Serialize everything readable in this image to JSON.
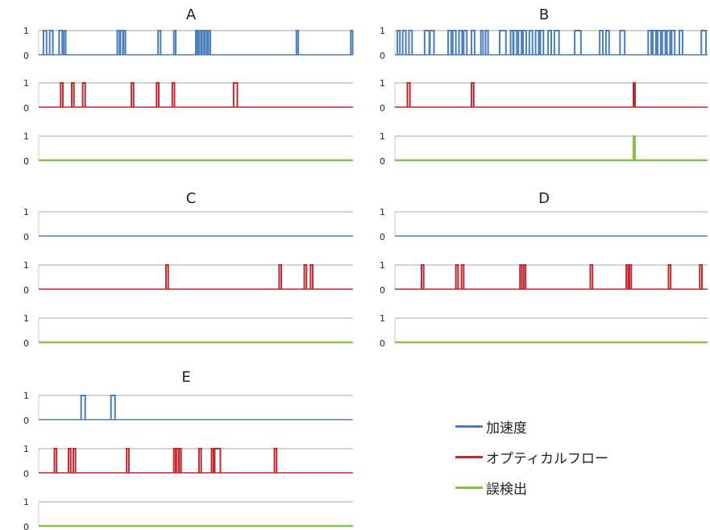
{
  "legend": {
    "accel": {
      "label": "加速度",
      "color": "#4a7ebb"
    },
    "optflow": {
      "label": "オプティカルフロー",
      "color": "#c0282d"
    },
    "false_detect": {
      "label": "誤検出",
      "color": "#86c24a"
    }
  },
  "chart_data": [
    {
      "type": "line",
      "title": "A",
      "x_domain": [
        0,
        100
      ],
      "y_ticks": [
        "1",
        "0"
      ],
      "ylim": [
        0,
        1
      ],
      "series": [
        {
          "name": "加速度",
          "key": "accel",
          "pulses": [
            [
              1.5,
              2.5
            ],
            [
              3.5,
              4.5
            ],
            [
              6.5,
              7.5
            ],
            [
              8.0,
              8.6
            ],
            [
              25.0,
              25.7
            ],
            [
              26.0,
              26.8
            ],
            [
              27.0,
              27.6
            ],
            [
              38.0,
              38.8
            ],
            [
              43.0,
              43.6
            ],
            [
              50.0,
              50.5
            ],
            [
              51.0,
              51.6
            ],
            [
              52.0,
              52.6
            ],
            [
              53.0,
              53.6
            ],
            [
              54.0,
              54.6
            ],
            [
              82.0,
              82.6
            ],
            [
              99.3,
              99.9
            ]
          ]
        },
        {
          "name": "オプティカルフロー",
          "key": "optflow",
          "pulses": [
            [
              7.0,
              7.7
            ],
            [
              10.5,
              11.2
            ],
            [
              14.0,
              14.8
            ],
            [
              29.5,
              30.2
            ],
            [
              37.5,
              38.2
            ],
            [
              42.5,
              43.2
            ],
            [
              62.0,
              63.2
            ]
          ]
        },
        {
          "name": "誤検出",
          "key": "false_detect",
          "pulses": []
        }
      ]
    },
    {
      "type": "line",
      "title": "B",
      "x_domain": [
        0,
        100
      ],
      "y_ticks": [
        "1",
        "0"
      ],
      "ylim": [
        0,
        1
      ],
      "series": [
        {
          "name": "加速度",
          "key": "accel",
          "pulses": [
            [
              0.8,
              1.6
            ],
            [
              2.5,
              3.5
            ],
            [
              4.5,
              5.5
            ],
            [
              9.5,
              11.0
            ],
            [
              11.2,
              12.5
            ],
            [
              17.0,
              18.0
            ],
            [
              18.5,
              19.5
            ],
            [
              20.5,
              21.5
            ],
            [
              22.0,
              23.0
            ],
            [
              24.5,
              25.5
            ],
            [
              27.5,
              28.2
            ],
            [
              29.0,
              29.8
            ],
            [
              33.5,
              35.5
            ],
            [
              37.0,
              37.8
            ],
            [
              38.0,
              39.0
            ],
            [
              39.5,
              40.5
            ],
            [
              41.0,
              42.0
            ],
            [
              43.0,
              44.0
            ],
            [
              45.0,
              46.0
            ],
            [
              46.5,
              47.5
            ],
            [
              49.0,
              50.0
            ],
            [
              51.0,
              52.5
            ],
            [
              57.5,
              59.5
            ],
            [
              65.5,
              66.5
            ],
            [
              67.5,
              68.5
            ],
            [
              72.0,
              73.5
            ],
            [
              81.0,
              82.0
            ],
            [
              82.5,
              83.5
            ],
            [
              84.0,
              85.0
            ],
            [
              85.5,
              86.5
            ],
            [
              87.0,
              88.0
            ],
            [
              88.5,
              89.5
            ],
            [
              91.0,
              92.0
            ],
            [
              98.0,
              99.5
            ]
          ]
        },
        {
          "name": "オプティカルフロー",
          "key": "optflow",
          "pulses": [
            [
              4.0,
              4.8
            ],
            [
              24.5,
              25.2
            ],
            [
              76.3,
              76.8
            ]
          ]
        },
        {
          "name": "誤検出",
          "key": "false_detect",
          "pulses": [
            [
              76.3,
              76.8
            ]
          ]
        }
      ]
    },
    {
      "type": "line",
      "title": "C",
      "x_domain": [
        0,
        100
      ],
      "y_ticks": [
        "1",
        "0"
      ],
      "ylim": [
        0,
        1
      ],
      "series": [
        {
          "name": "加速度",
          "key": "accel",
          "pulses": []
        },
        {
          "name": "オプティカルフロー",
          "key": "optflow",
          "pulses": [
            [
              40.5,
              41.2
            ],
            [
              76.5,
              77.2
            ],
            [
              84.5,
              85.2
            ],
            [
              86.5,
              87.2
            ]
          ]
        },
        {
          "name": "誤検出",
          "key": "false_detect",
          "pulses": []
        }
      ]
    },
    {
      "type": "line",
      "title": "D",
      "x_domain": [
        0,
        100
      ],
      "y_ticks": [
        "1",
        "0"
      ],
      "ylim": [
        0,
        1
      ],
      "series": [
        {
          "name": "加速度",
          "key": "accel",
          "pulses": []
        },
        {
          "name": "オプティカルフロー",
          "key": "optflow",
          "pulses": [
            [
              8.5,
              9.2
            ],
            [
              19.5,
              20.2
            ],
            [
              21.3,
              22.0
            ],
            [
              40.0,
              40.6
            ],
            [
              41.2,
              41.8
            ],
            [
              62.5,
              63.2
            ],
            [
              74.0,
              74.6
            ],
            [
              75.0,
              75.6
            ],
            [
              87.5,
              88.2
            ],
            [
              97.5,
              98.2
            ]
          ]
        },
        {
          "name": "誤検出",
          "key": "false_detect",
          "pulses": []
        }
      ]
    },
    {
      "type": "line",
      "title": "E",
      "x_domain": [
        0,
        100
      ],
      "y_ticks": [
        "1",
        "0"
      ],
      "ylim": [
        0,
        1
      ],
      "series": [
        {
          "name": "加速度",
          "key": "accel",
          "pulses": [
            [
              13.5,
              14.8
            ],
            [
              23.0,
              24.3
            ]
          ]
        },
        {
          "name": "オプティカルフロー",
          "key": "optflow",
          "pulses": [
            [
              5.0,
              5.7
            ],
            [
              9.5,
              10.2
            ],
            [
              11.0,
              11.7
            ],
            [
              28.0,
              28.7
            ],
            [
              43.0,
              43.6
            ],
            [
              43.8,
              44.5
            ],
            [
              44.7,
              45.3
            ],
            [
              51.0,
              51.7
            ],
            [
              55.0,
              55.6
            ],
            [
              56.0,
              57.8
            ],
            [
              75.0,
              75.7
            ]
          ]
        },
        {
          "name": "誤検出",
          "key": "false_detect",
          "pulses": []
        }
      ]
    }
  ]
}
